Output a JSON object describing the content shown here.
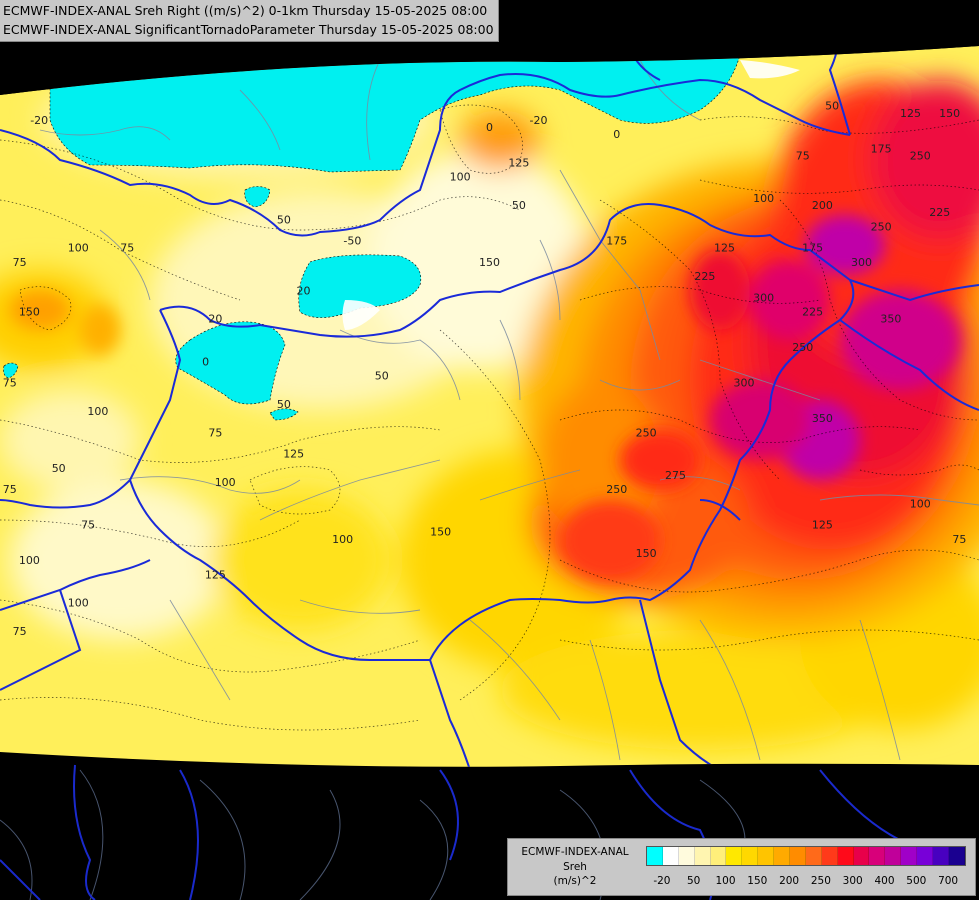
{
  "header": {
    "line1": "ECMWF-INDEX-ANAL Sreh Right ((m/s)^2) 0-1km Thursday 15-05-2025 08:00",
    "line2": "ECMWF-INDEX-ANAL SignificantTornadoParameter Thursday 15-05-2025 08:00"
  },
  "legend": {
    "title_model": "ECMWF-INDEX-ANAL",
    "title_var": "Sreh",
    "title_unit": "(m/s)^2",
    "swatch_colors": [
      "#00ffff",
      "#ffffff",
      "#fffbdd",
      "#fff5b0",
      "#ffef7a",
      "#ffe800",
      "#ffd800",
      "#ffc400",
      "#ffaa00",
      "#ff8c00",
      "#ff6a1a",
      "#ff3a1a",
      "#ff0a1a",
      "#e8004a",
      "#d8007a",
      "#c0009a",
      "#a000c8",
      "#7800d8",
      "#4800c0",
      "#1a0090"
    ],
    "ticks": [
      {
        "label": "-20",
        "at": 1
      },
      {
        "label": "50",
        "at": 3
      },
      {
        "label": "100",
        "at": 5
      },
      {
        "label": "150",
        "at": 7
      },
      {
        "label": "200",
        "at": 9
      },
      {
        "label": "250",
        "at": 11
      },
      {
        "label": "300",
        "at": 13
      },
      {
        "label": "400",
        "at": 15
      },
      {
        "label": "500",
        "at": 17
      },
      {
        "label": "700",
        "at": 19
      }
    ]
  },
  "contour_labels": [
    {
      "text": "-20",
      "lon": 0.04,
      "lat": 0.09
    },
    {
      "text": "-20",
      "lon": 0.55,
      "lat": 0.09
    },
    {
      "text": "0",
      "lon": 0.5,
      "lat": 0.1
    },
    {
      "text": "0",
      "lon": 0.63,
      "lat": 0.11
    },
    {
      "text": "125",
      "lon": 0.53,
      "lat": 0.15
    },
    {
      "text": "100",
      "lon": 0.47,
      "lat": 0.17
    },
    {
      "text": "50",
      "lon": 0.53,
      "lat": 0.21
    },
    {
      "text": "50",
      "lon": 0.29,
      "lat": 0.23
    },
    {
      "text": "75",
      "lon": 0.13,
      "lat": 0.27
    },
    {
      "text": "100",
      "lon": 0.08,
      "lat": 0.27
    },
    {
      "text": "75",
      "lon": 0.02,
      "lat": 0.29
    },
    {
      "text": "-50",
      "lon": 0.36,
      "lat": 0.26
    },
    {
      "text": "150",
      "lon": 0.5,
      "lat": 0.29
    },
    {
      "text": "175",
      "lon": 0.63,
      "lat": 0.26
    },
    {
      "text": "125",
      "lon": 0.74,
      "lat": 0.27
    },
    {
      "text": "225",
      "lon": 0.72,
      "lat": 0.31
    },
    {
      "text": "175",
      "lon": 0.83,
      "lat": 0.27
    },
    {
      "text": "300",
      "lon": 0.88,
      "lat": 0.29
    },
    {
      "text": "300",
      "lon": 0.78,
      "lat": 0.34
    },
    {
      "text": "225",
      "lon": 0.83,
      "lat": 0.36
    },
    {
      "text": "350",
      "lon": 0.91,
      "lat": 0.37
    },
    {
      "text": "250",
      "lon": 0.82,
      "lat": 0.41
    },
    {
      "text": "300",
      "lon": 0.76,
      "lat": 0.46
    },
    {
      "text": "350",
      "lon": 0.84,
      "lat": 0.51
    },
    {
      "text": "250",
      "lon": 0.66,
      "lat": 0.53
    },
    {
      "text": "275",
      "lon": 0.69,
      "lat": 0.59
    },
    {
      "text": "250",
      "lon": 0.63,
      "lat": 0.61
    },
    {
      "text": "150",
      "lon": 0.03,
      "lat": 0.36
    },
    {
      "text": "20",
      "lon": 0.22,
      "lat": 0.37
    },
    {
      "text": "20",
      "lon": 0.31,
      "lat": 0.33
    },
    {
      "text": "0",
      "lon": 0.21,
      "lat": 0.43
    },
    {
      "text": "50",
      "lon": 0.39,
      "lat": 0.45
    },
    {
      "text": "50",
      "lon": 0.29,
      "lat": 0.49
    },
    {
      "text": "100",
      "lon": 0.1,
      "lat": 0.5
    },
    {
      "text": "75",
      "lon": 0.01,
      "lat": 0.46
    },
    {
      "text": "75",
      "lon": 0.22,
      "lat": 0.53
    },
    {
      "text": "125",
      "lon": 0.3,
      "lat": 0.56
    },
    {
      "text": "50",
      "lon": 0.06,
      "lat": 0.58
    },
    {
      "text": "75",
      "lon": 0.01,
      "lat": 0.61
    },
    {
      "text": "100",
      "lon": 0.23,
      "lat": 0.6
    },
    {
      "text": "75",
      "lon": 0.09,
      "lat": 0.66
    },
    {
      "text": "100",
      "lon": 0.35,
      "lat": 0.68
    },
    {
      "text": "150",
      "lon": 0.45,
      "lat": 0.67
    },
    {
      "text": "125",
      "lon": 0.22,
      "lat": 0.73
    },
    {
      "text": "100",
      "lon": 0.03,
      "lat": 0.71
    },
    {
      "text": "100",
      "lon": 0.08,
      "lat": 0.77
    },
    {
      "text": "75",
      "lon": 0.02,
      "lat": 0.81
    },
    {
      "text": "125",
      "lon": 0.84,
      "lat": 0.66
    },
    {
      "text": "150",
      "lon": 0.66,
      "lat": 0.7
    },
    {
      "text": "100",
      "lon": 0.94,
      "lat": 0.63
    },
    {
      "text": "75",
      "lon": 0.98,
      "lat": 0.68
    },
    {
      "text": "100",
      "lon": 0.78,
      "lat": 0.2
    },
    {
      "text": "200",
      "lon": 0.84,
      "lat": 0.21
    },
    {
      "text": "75",
      "lon": 0.82,
      "lat": 0.14
    },
    {
      "text": "175",
      "lon": 0.9,
      "lat": 0.13
    },
    {
      "text": "250",
      "lon": 0.94,
      "lat": 0.14
    },
    {
      "text": "225",
      "lon": 0.96,
      "lat": 0.22
    },
    {
      "text": "250",
      "lon": 0.9,
      "lat": 0.24
    },
    {
      "text": "125",
      "lon": 0.93,
      "lat": 0.08
    },
    {
      "text": "150",
      "lon": 0.97,
      "lat": 0.08
    },
    {
      "text": "50",
      "lon": 0.85,
      "lat": 0.07
    }
  ]
}
